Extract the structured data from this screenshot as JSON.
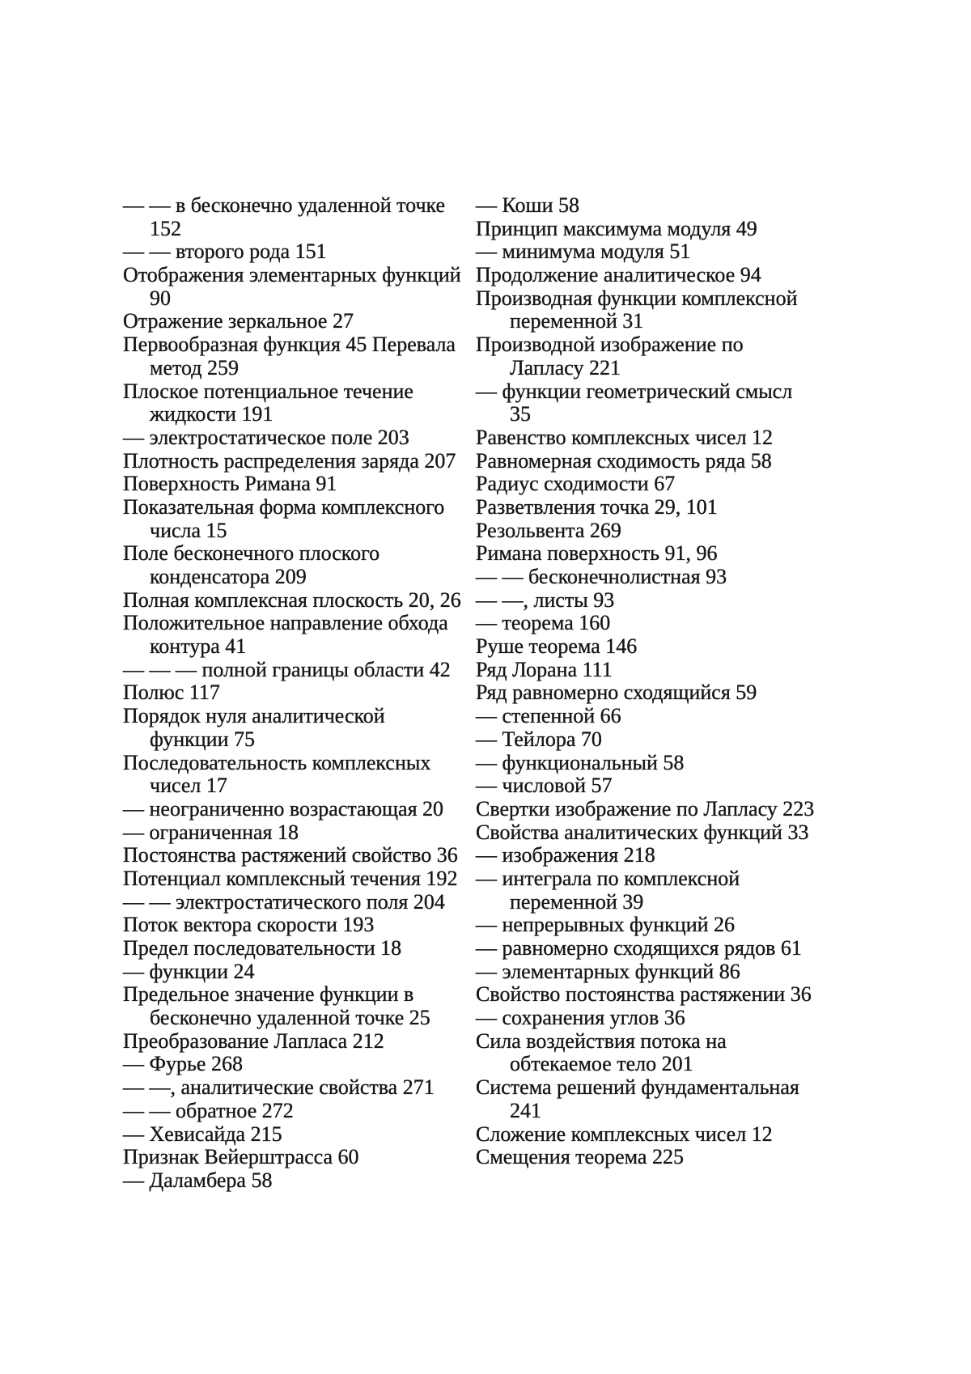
{
  "page": {
    "kind": "book-index-page",
    "language": "ru",
    "colors": {
      "background": "#ffffff",
      "text": "#161616"
    }
  },
  "index": {
    "left_column": {
      "lines": [
        {
          "text": "— — в бесконечно удаленной точке",
          "indent": false
        },
        {
          "text": "152",
          "indent": true
        },
        {
          "text": "— — второго рода 151",
          "indent": false
        },
        {
          "text": "Отображения элементарных функций",
          "indent": false
        },
        {
          "text": "90",
          "indent": true
        },
        {
          "text": "Отражение зеркальное 27",
          "indent": false
        },
        {
          "text": "Первообразная функция 45 Перевала",
          "indent": false
        },
        {
          "text": "метод 259",
          "indent": true
        },
        {
          "text": "Плоское потенциальное течение",
          "indent": false
        },
        {
          "text": "жидкости 191",
          "indent": true
        },
        {
          "text": "— электростатическое поле 203",
          "indent": false
        },
        {
          "text": "Плотность распределения заряда 207",
          "indent": false
        },
        {
          "text": "Поверхность Римана 91",
          "indent": false
        },
        {
          "text": "Показательная форма комплексного",
          "indent": false
        },
        {
          "text": "числа 15",
          "indent": true
        },
        {
          "text": "Поле бесконечного плоского",
          "indent": false
        },
        {
          "text": "конденсатора 209",
          "indent": true
        },
        {
          "text": "Полная комплексная плоскость 20, 26",
          "indent": false
        },
        {
          "text": "Положительное направление обхода",
          "indent": false
        },
        {
          "text": "контура 41",
          "indent": true
        },
        {
          "text": "— — — полной границы области 42",
          "indent": false
        },
        {
          "text": "Полюс 117",
          "indent": false
        },
        {
          "text": "Порядок нуля аналитической",
          "indent": false
        },
        {
          "text": "функции 75",
          "indent": true
        },
        {
          "text": "Последовательность комплексных",
          "indent": false
        },
        {
          "text": "чисел 17",
          "indent": true
        },
        {
          "text": "— неограниченно возрастающая 20",
          "indent": false
        },
        {
          "text": "— ограниченная 18",
          "indent": false
        },
        {
          "text": "Постоянства растяжений свойство 36",
          "indent": false
        },
        {
          "text": "Потенциал комплексный течения 192",
          "indent": false
        },
        {
          "text": "— — электростатического поля 204",
          "indent": false
        },
        {
          "text": "Поток вектора скорости 193",
          "indent": false
        },
        {
          "text": "Предел последовательности 18",
          "indent": false
        },
        {
          "text": "— функции 24",
          "indent": false
        },
        {
          "text": "Предельное значение функции в",
          "indent": false
        },
        {
          "text": "бесконечно удаленной точке 25",
          "indent": true
        },
        {
          "text": "Преобразование Лапласа 212",
          "indent": false
        },
        {
          "text": "— Фурье 268",
          "indent": false
        },
        {
          "text": "— —, аналитические свойства 271",
          "indent": false
        },
        {
          "text": "— — обратное 272",
          "indent": false
        },
        {
          "text": "— Хевисайда 215",
          "indent": false
        },
        {
          "text": "Признак Вейерштрасса 60",
          "indent": false
        },
        {
          "text": "— Даламбера 58",
          "indent": false
        }
      ]
    },
    "right_column": {
      "lines": [
        {
          "text": "— Коши 58",
          "indent": false
        },
        {
          "text": "Принцип максимума модуля 49",
          "indent": false
        },
        {
          "text": "— минимума модуля 51",
          "indent": false
        },
        {
          "text": "Продолжение аналитическое 94",
          "indent": false
        },
        {
          "text": "Производная функции комплексной",
          "indent": false
        },
        {
          "text": "переменной 31",
          "indent": true
        },
        {
          "text": "Производной изображение по",
          "indent": false
        },
        {
          "text": "Лапласу 221",
          "indent": true
        },
        {
          "text": "— функции геометрический смысл",
          "indent": false
        },
        {
          "text": "35",
          "indent": true
        },
        {
          "text": "Равенство комплексных чисел 12",
          "indent": false
        },
        {
          "text": "Равномерная сходимость ряда 58",
          "indent": false
        },
        {
          "text": "Радиус сходимости 67",
          "indent": false
        },
        {
          "text": "Разветвления точка 29, 101",
          "indent": false
        },
        {
          "text": "Резольвента 269",
          "indent": false
        },
        {
          "text": "Римана поверхность 91, 96",
          "indent": false
        },
        {
          "text": "— — бесконечнолистная 93",
          "indent": false
        },
        {
          "text": "— —, листы 93",
          "indent": false
        },
        {
          "text": "— теорема 160",
          "indent": false
        },
        {
          "text": "Руше теорема 146",
          "indent": false
        },
        {
          "text": "Ряд Лорана 111",
          "indent": false
        },
        {
          "text": "Ряд равномерно сходящийся 59",
          "indent": false
        },
        {
          "text": "— степенной 66",
          "indent": false
        },
        {
          "text": "— Тейлора 70",
          "indent": false
        },
        {
          "text": "— функциональный 58",
          "indent": false
        },
        {
          "text": "— числовой 57",
          "indent": false
        },
        {
          "text": "Свертки изображение по Лапласу 223",
          "indent": false
        },
        {
          "text": "Свойства аналитических функций 33",
          "indent": false
        },
        {
          "text": "— изображения 218",
          "indent": false
        },
        {
          "text": "— интеграла по комплексной",
          "indent": false
        },
        {
          "text": "переменной 39",
          "indent": true
        },
        {
          "text": "— непрерывных функций 26",
          "indent": false
        },
        {
          "text": "— равномерно сходящихся рядов 61",
          "indent": false
        },
        {
          "text": "— элементарных функций 86",
          "indent": false
        },
        {
          "text": "Свойство постоянства растяжении 36",
          "indent": false
        },
        {
          "text": "— сохранения углов 36",
          "indent": false
        },
        {
          "text": "Сила воздействия потока на",
          "indent": false
        },
        {
          "text": "обтекаемое тело 201",
          "indent": true
        },
        {
          "text": "Система решений фундаментальная",
          "indent": false
        },
        {
          "text": "241",
          "indent": true
        },
        {
          "text": "Сложение комплексных чисел 12",
          "indent": false
        },
        {
          "text": "Смещения теорема 225",
          "indent": false
        }
      ]
    }
  }
}
